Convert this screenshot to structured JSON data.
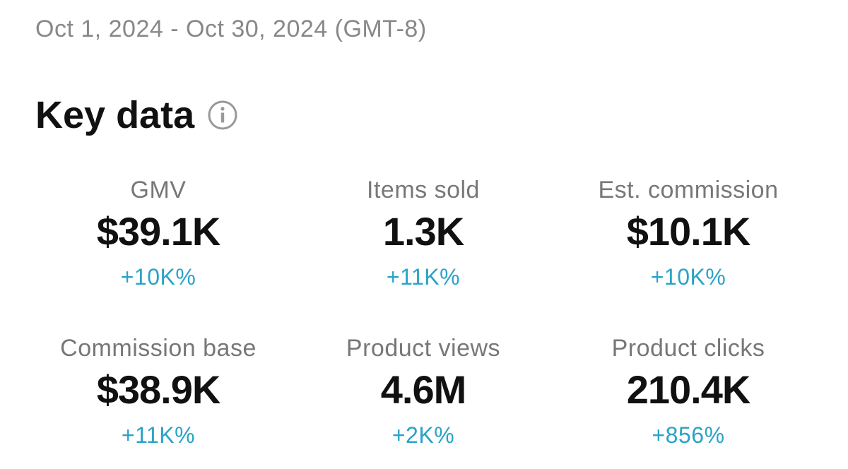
{
  "header": {
    "date_range": "Oct 1, 2024 - Oct 30, 2024 (GMT-8)",
    "title": "Key data"
  },
  "metrics": [
    {
      "label": "GMV",
      "value": "$39.1K",
      "change": "+10K%"
    },
    {
      "label": "Items sold",
      "value": "1.3K",
      "change": "+11K%"
    },
    {
      "label": "Est. commission",
      "value": "$10.1K",
      "change": "+10K%"
    },
    {
      "label": "Commission base",
      "value": "$38.9K",
      "change": "+11K%"
    },
    {
      "label": "Product views",
      "value": "4.6M",
      "change": "+2K%"
    },
    {
      "label": "Product clicks",
      "value": "210.4K",
      "change": "+856%"
    }
  ]
}
